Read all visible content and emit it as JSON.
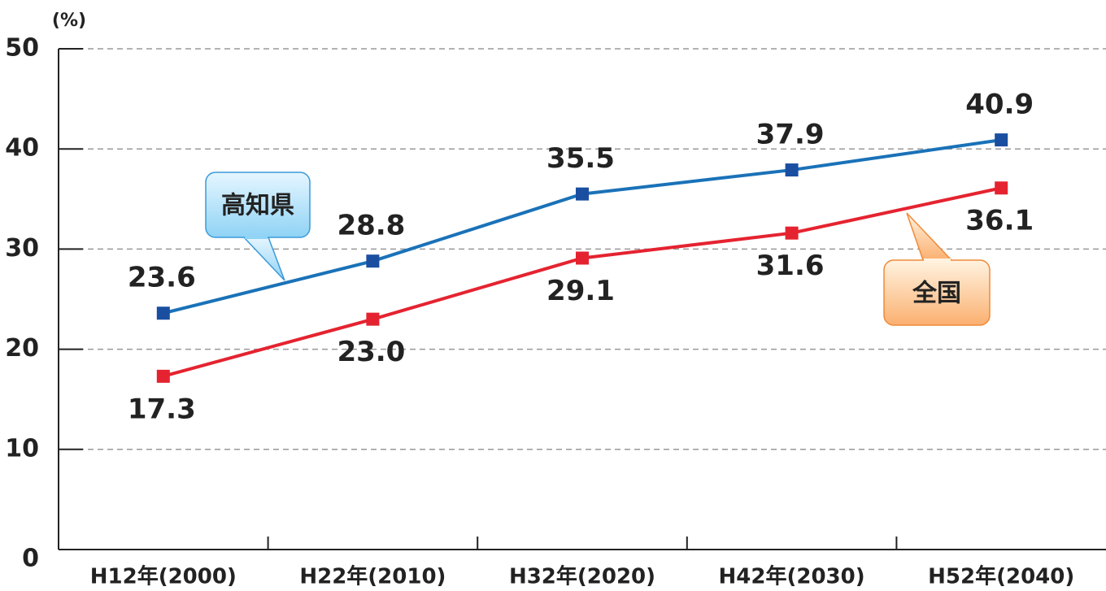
{
  "chart_data": {
    "type": "line",
    "y_axis_label": "(%)",
    "categories": [
      "H12年(2000)",
      "H22年(2010)",
      "H32年(2020)",
      "H42年(2030)",
      "H52年(2040)"
    ],
    "series": [
      {
        "name": "高知県",
        "color": "#1a72b8",
        "marker_color": "#1a4ea0",
        "values": [
          23.6,
          28.8,
          35.5,
          37.9,
          40.9
        ],
        "value_labels": [
          "23.6",
          "28.8",
          "35.5",
          "37.9",
          "40.9"
        ]
      },
      {
        "name": "全国",
        "color": "#e52330",
        "marker_color": "#e52330",
        "values": [
          17.3,
          23.0,
          29.1,
          31.6,
          36.1
        ],
        "value_labels": [
          "17.3",
          "23.0",
          "29.1",
          "31.6",
          "36.1"
        ]
      }
    ],
    "ylim": [
      0,
      50
    ],
    "yticks": [
      0,
      10,
      20,
      30,
      40,
      50
    ],
    "grid": true
  }
}
